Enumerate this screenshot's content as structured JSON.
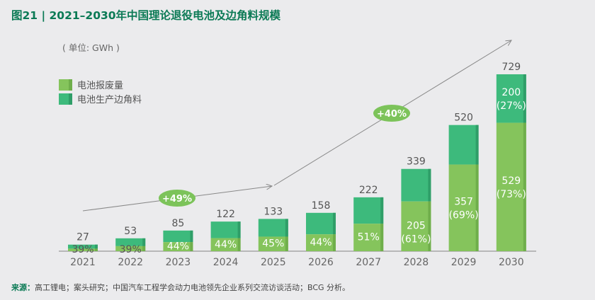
{
  "title": "图21 | 2021–2030年中国理论退役电池及边角料规模",
  "unit": "( 单位: GWh )",
  "source": {
    "label": "来源：",
    "text": "高工锂电；案头研究；中国汽车工程学会动力电池领先企业系列交流访谈活动；BCG 分析。"
  },
  "chart_data": {
    "type": "bar",
    "stacked": true,
    "title": "图21 | 2021–2030年中国理论退役电池及边角料规模",
    "ylabel": "( 单位: GWh )",
    "categories": [
      "2021",
      "2022",
      "2023",
      "2024",
      "2025",
      "2026",
      "2027",
      "2028",
      "2029",
      "2030"
    ],
    "totals": [
      27,
      53,
      85,
      122,
      133,
      158,
      222,
      339,
      520,
      729
    ],
    "series": [
      {
        "name": "电池报废量",
        "color": "#85c45c",
        "values": [
          10.5,
          20.7,
          37.4,
          53.7,
          59.9,
          69.5,
          113.2,
          205,
          357,
          529
        ],
        "pct_labels": [
          "39%",
          "39%",
          "44%",
          "44%",
          "45%",
          "44%",
          "51%",
          "205\n(61%)",
          "357\n(69%)",
          "529\n(73%)"
        ]
      },
      {
        "name": "电池生产边角料",
        "color": "#3dba7c",
        "values": [
          16.5,
          32.3,
          47.6,
          68.3,
          73.1,
          88.5,
          108.8,
          134,
          163,
          200
        ],
        "pct_labels": [
          "",
          "",
          "",
          "",
          "",
          "",
          "",
          "",
          "",
          "200\n(27%)"
        ]
      }
    ],
    "annotations": [
      {
        "text": "+49%",
        "from": "2021",
        "to": "2025"
      },
      {
        "text": "+40%",
        "from": "2025",
        "to": "2030"
      }
    ],
    "ylim": [
      0,
      729
    ],
    "grid": false,
    "legend": "top-left"
  }
}
